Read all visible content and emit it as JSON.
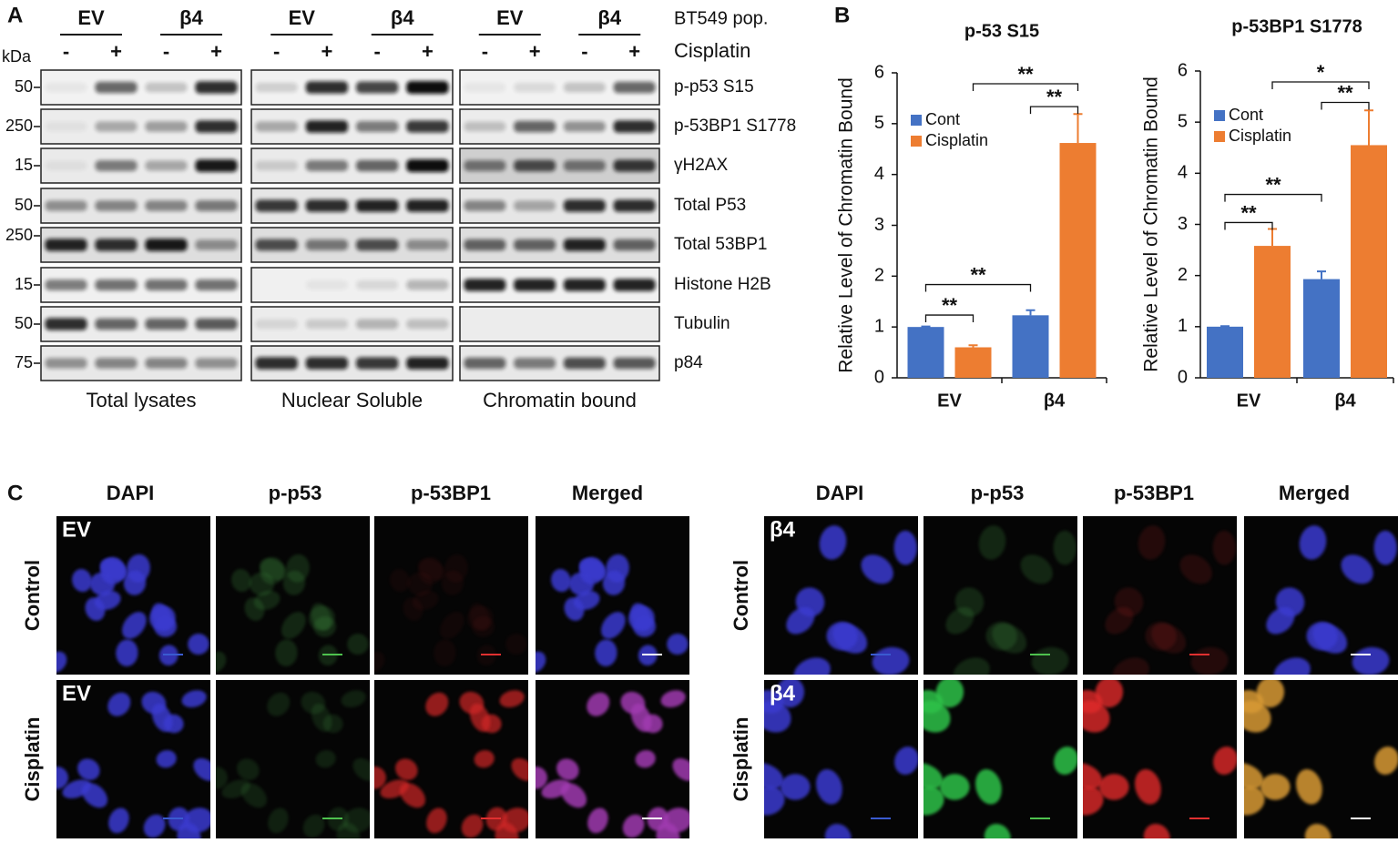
{
  "panel_a": {
    "label": "A",
    "kda": "kDa",
    "markers": [
      "50",
      "250",
      "15",
      "50",
      "250",
      "15",
      "50",
      "75"
    ],
    "population_label": "BT549 pop.",
    "treatment_label": "Cisplatin",
    "proteins": [
      "p-p53 S15",
      "p-53BP1 S1778",
      "γH2AX",
      "Total P53",
      "Total 53BP1",
      "Histone H2B",
      "Tubulin",
      "p84"
    ],
    "sections": [
      {
        "title": "Total lysates",
        "genotypes": [
          "EV",
          "β4"
        ],
        "treatments": [
          "-",
          "+",
          "-",
          "+"
        ]
      },
      {
        "title": "Nuclear Soluble",
        "genotypes": [
          "EV",
          "β4"
        ],
        "treatments": [
          "-",
          "+",
          "-",
          "+"
        ]
      },
      {
        "title": "Chromatin bound",
        "genotypes": [
          "EV",
          "β4"
        ],
        "treatments": [
          "-",
          "+",
          "-",
          "+"
        ]
      }
    ]
  },
  "panel_b": {
    "label": "B"
  },
  "chart_data": [
    {
      "type": "bar",
      "title": "p-53 S15",
      "y_label": "Relative Level of Chromatin Bound",
      "categories": [
        "EV",
        "β4"
      ],
      "series": [
        {
          "name": "Cont",
          "color": "#4472c4",
          "values": [
            1.0,
            1.23
          ],
          "errors": [
            0.01,
            0.1
          ]
        },
        {
          "name": "Cisplatin",
          "color": "#ed7d31",
          "values": [
            0.6,
            4.62
          ],
          "errors": [
            0.04,
            0.57
          ]
        }
      ],
      "ylim": [
        0,
        6
      ],
      "yticks": [
        0,
        1,
        2,
        3,
        4,
        5,
        6
      ],
      "legend": "upper-left",
      "annotations": [
        "**",
        "**",
        "**",
        "**"
      ]
    },
    {
      "type": "bar",
      "title": "p-53BP1 S1778",
      "y_label": "Relative Level of Chromatin Bound",
      "categories": [
        "EV",
        "β4"
      ],
      "series": [
        {
          "name": "Cont",
          "color": "#4472c4",
          "values": [
            1.0,
            1.93
          ],
          "errors": [
            0.01,
            0.15
          ]
        },
        {
          "name": "Cisplatin",
          "color": "#ed7d31",
          "values": [
            2.58,
            4.55
          ],
          "errors": [
            0.33,
            0.68
          ]
        }
      ],
      "ylim": [
        0,
        6
      ],
      "yticks": [
        0,
        1,
        2,
        3,
        4,
        5,
        6
      ],
      "legend": "upper-left",
      "annotations": [
        "**",
        "**",
        "**",
        "*"
      ]
    }
  ],
  "panel_c": {
    "label": "C",
    "halves": [
      {
        "columns": [
          "DAPI",
          "p-p53",
          "p-53BP1",
          "Merged"
        ],
        "rows": [
          "Control",
          "Cisplatin"
        ],
        "tile_labels": [
          "EV",
          "EV"
        ]
      },
      {
        "columns": [
          "DAPI",
          "p-p53",
          "p-53BP1",
          "Merged"
        ],
        "rows": [
          "Control",
          "Cisplatin"
        ],
        "tile_labels": [
          "β4",
          "β4"
        ]
      }
    ]
  }
}
